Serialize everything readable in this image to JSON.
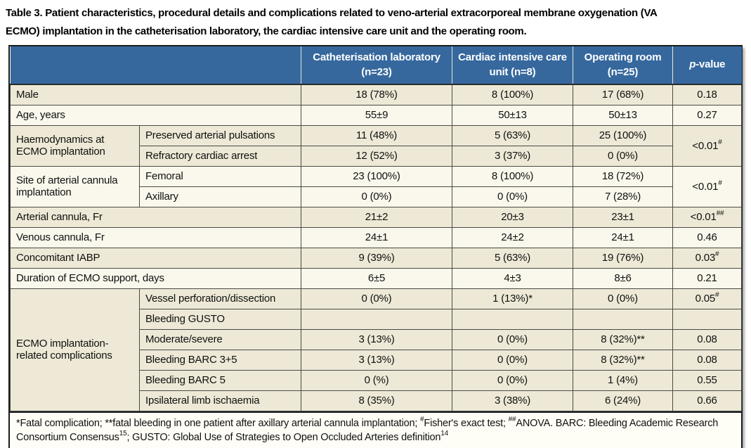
{
  "title": {
    "lines": [
      "Table 3. Patient characteristics, procedural details and complications related to veno-arterial extracorporeal membrane oxygenation (VA",
      "ECMO) implantation in the catheterisation laboratory, the cardiac intensive care unit and the operating room."
    ]
  },
  "colors": {
    "header_bg": "#36689E",
    "header_text": "#FFFFFF",
    "row_beige": "#EDE9D6",
    "row_light": "#FAF8EC"
  },
  "table": {
    "header": [
      {
        "t": "",
        "colspan": 2
      },
      {
        "t": "Catheterisation laboratory (n=23)"
      },
      {
        "t": "Cardiac intensive care unit (n=8)"
      },
      {
        "t": "Operating room (n=25)"
      },
      {
        "parts": [
          {
            "t": "p",
            "italic": true
          },
          {
            "t": "-value"
          }
        ]
      }
    ],
    "rows": [
      {
        "bg": "beige",
        "cells": [
          {
            "t": "Male",
            "colspan": 2,
            "align": "left"
          },
          {
            "t": "18 (78%)"
          },
          {
            "t": "8 (100%)"
          },
          {
            "t": "17 (68%)"
          },
          {
            "t": "0.18"
          }
        ]
      },
      {
        "bg": "light",
        "cells": [
          {
            "t": "Age, years",
            "colspan": 2,
            "align": "left"
          },
          {
            "t": "55±9"
          },
          {
            "t": "50±13"
          },
          {
            "t": "50±13"
          },
          {
            "t": "0.27"
          }
        ]
      },
      {
        "bg": "beige",
        "cells": [
          {
            "t": "Haemodynamics at ECMO implantation",
            "rowspan": 2,
            "align": "left"
          },
          {
            "t": "Preserved arterial pulsations",
            "align": "left"
          },
          {
            "t": "11 (48%)"
          },
          {
            "t": "5 (63%)"
          },
          {
            "t": "25 (100%)"
          },
          {
            "parts": [
              {
                "t": "<0.01"
              },
              {
                "t": "#",
                "sup": true
              }
            ],
            "rowspan": 2
          }
        ]
      },
      {
        "bg": "beige",
        "cells": [
          {
            "t": "Refractory cardiac arrest",
            "align": "left"
          },
          {
            "t": "12 (52%)"
          },
          {
            "t": "3 (37%)"
          },
          {
            "t": "0 (0%)"
          }
        ]
      },
      {
        "bg": "light",
        "cells": [
          {
            "t": "Site of arterial cannula implantation",
            "rowspan": 2,
            "align": "left"
          },
          {
            "t": "Femoral",
            "align": "left"
          },
          {
            "t": "23 (100%)"
          },
          {
            "t": "8 (100%)"
          },
          {
            "t": "18 (72%)"
          },
          {
            "parts": [
              {
                "t": "<0.01"
              },
              {
                "t": "#",
                "sup": true
              }
            ],
            "rowspan": 2
          }
        ]
      },
      {
        "bg": "light",
        "cells": [
          {
            "t": "Axillary",
            "align": "left"
          },
          {
            "t": "0 (0%)"
          },
          {
            "t": "0 (0%)"
          },
          {
            "t": "7 (28%)"
          }
        ]
      },
      {
        "bg": "beige",
        "cells": [
          {
            "t": "Arterial cannula, Fr",
            "colspan": 2,
            "align": "left"
          },
          {
            "t": "21±2"
          },
          {
            "t": "20±3"
          },
          {
            "t": "23±1"
          },
          {
            "parts": [
              {
                "t": "<0.01"
              },
              {
                "t": "##",
                "sup": true
              }
            ]
          }
        ]
      },
      {
        "bg": "light",
        "cells": [
          {
            "t": "Venous cannula, Fr",
            "colspan": 2,
            "align": "left"
          },
          {
            "t": "24±1"
          },
          {
            "t": "24±2"
          },
          {
            "t": "24±1"
          },
          {
            "t": "0.46"
          }
        ]
      },
      {
        "bg": "beige",
        "cells": [
          {
            "t": "Concomitant IABP",
            "colspan": 2,
            "align": "left"
          },
          {
            "t": "9 (39%)"
          },
          {
            "t": "5 (63%)"
          },
          {
            "t": "19 (76%)"
          },
          {
            "parts": [
              {
                "t": "0.03"
              },
              {
                "t": "#",
                "sup": true
              }
            ]
          }
        ]
      },
      {
        "bg": "light",
        "cells": [
          {
            "t": "Duration of ECMO support, days",
            "colspan": 2,
            "align": "left"
          },
          {
            "t": "6±5"
          },
          {
            "t": "4±3"
          },
          {
            "t": "8±6"
          },
          {
            "t": "0.21"
          }
        ]
      },
      {
        "bg": "beige",
        "cells": [
          {
            "t": "ECMO implantation-related complications",
            "rowspan": 6,
            "align": "left"
          },
          {
            "t": "Vessel perforation/dissection",
            "align": "left"
          },
          {
            "t": "0 (0%)"
          },
          {
            "t": "1 (13%)*"
          },
          {
            "t": "0 (0%)"
          },
          {
            "parts": [
              {
                "t": "0.05"
              },
              {
                "t": "#",
                "sup": true
              }
            ]
          }
        ]
      },
      {
        "bg": "beige",
        "cells": [
          {
            "t": "Bleeding GUSTO",
            "align": "left"
          },
          {
            "t": ""
          },
          {
            "t": ""
          },
          {
            "t": ""
          },
          {
            "t": ""
          }
        ]
      },
      {
        "bg": "beige",
        "cells": [
          {
            "t": "Moderate/severe",
            "align": "left"
          },
          {
            "t": "3 (13%)"
          },
          {
            "t": "0 (0%)"
          },
          {
            "t": "8 (32%)**"
          },
          {
            "t": "0.08"
          }
        ]
      },
      {
        "bg": "beige",
        "cells": [
          {
            "t": "Bleeding BARC 3+5",
            "align": "left"
          },
          {
            "t": "3 (13%)"
          },
          {
            "t": "0 (0%)"
          },
          {
            "t": "8 (32%)**"
          },
          {
            "t": "0.08"
          }
        ]
      },
      {
        "bg": "beige",
        "cells": [
          {
            "t": "Bleeding BARC 5",
            "align": "left"
          },
          {
            "t": "0 (%)"
          },
          {
            "t": "0 (0%)"
          },
          {
            "t": "1 (4%)"
          },
          {
            "t": "0.55"
          }
        ]
      },
      {
        "bg": "beige",
        "cells": [
          {
            "t": "Ipsilateral limb ischaemia",
            "align": "left"
          },
          {
            "t": "8 (35%)"
          },
          {
            "t": "3 (38%)"
          },
          {
            "t": "6 (24%)"
          },
          {
            "t": "0.66"
          }
        ]
      }
    ]
  },
  "footnote": {
    "segments": [
      {
        "t": "*Fatal complication; **fatal bleeding in one patient after axillary arterial cannula implantation; "
      },
      {
        "t": "#",
        "sup": true
      },
      {
        "t": "Fisher's exact test; "
      },
      {
        "t": "##",
        "sup": true
      },
      {
        "t": "ANOVA. BARC: Bleeding Academic Research Consortium Consensus"
      },
      {
        "t": "15",
        "sup": true
      },
      {
        "t": "; GUSTO: Global Use of Strategies to Open Occluded Arteries definition"
      },
      {
        "t": "14",
        "sup": true
      }
    ]
  }
}
